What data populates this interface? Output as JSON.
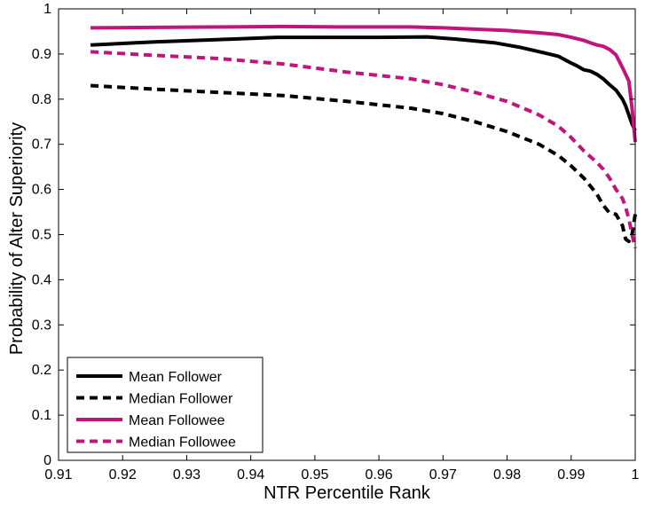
{
  "chart_data": {
    "type": "line",
    "xlabel": "NTR Percentile Rank",
    "ylabel": "Probability of Alter Superiority",
    "xlim": [
      0.91,
      1.0
    ],
    "ylim": [
      0,
      1.0
    ],
    "xticks": [
      0.91,
      0.92,
      0.93,
      0.94,
      0.95,
      0.96,
      0.97,
      0.98,
      0.99,
      1.0
    ],
    "xtick_labels": [
      "0.91",
      "0.92",
      "0.93",
      "0.94",
      "0.95",
      "0.96",
      "0.97",
      "0.98",
      "0.99",
      "1"
    ],
    "yticks": [
      0,
      0.1,
      0.2,
      0.3,
      0.4,
      0.5,
      0.6,
      0.7,
      0.8,
      0.9,
      1.0
    ],
    "ytick_labels": [
      "0",
      "0.1",
      "0.2",
      "0.3",
      "0.4",
      "0.5",
      "0.6",
      "0.7",
      "0.8",
      "0.9",
      "1"
    ],
    "grid": false,
    "legend_position": "bottom-left",
    "series": [
      {
        "name": "Mean Follower",
        "color": "#000000",
        "dash": "solid",
        "x": [
          0.915,
          0.925,
          0.935,
          0.944,
          0.95,
          0.96,
          0.9675,
          0.972,
          0.978,
          0.982,
          0.986,
          0.988,
          0.99,
          0.991,
          0.992,
          0.993,
          0.994,
          0.995,
          0.996,
          0.997,
          0.998,
          0.9985,
          0.999,
          0.9995,
          1.0
        ],
        "y": [
          0.92,
          0.927,
          0.932,
          0.937,
          0.937,
          0.937,
          0.938,
          0.933,
          0.925,
          0.915,
          0.902,
          0.895,
          0.88,
          0.873,
          0.865,
          0.862,
          0.855,
          0.845,
          0.832,
          0.82,
          0.8,
          0.785,
          0.765,
          0.745,
          0.73
        ]
      },
      {
        "name": "Median Follower",
        "color": "#000000",
        "dash": "dashed",
        "x": [
          0.915,
          0.925,
          0.935,
          0.945,
          0.955,
          0.965,
          0.97,
          0.975,
          0.98,
          0.985,
          0.988,
          0.99,
          0.992,
          0.994,
          0.995,
          0.996,
          0.997,
          0.998,
          0.9985,
          0.999,
          0.9995,
          1.0
        ],
        "y": [
          0.83,
          0.822,
          0.815,
          0.808,
          0.795,
          0.78,
          0.768,
          0.75,
          0.728,
          0.7,
          0.675,
          0.652,
          0.625,
          0.59,
          0.565,
          0.548,
          0.545,
          0.52,
          0.49,
          0.485,
          0.5,
          0.545
        ]
      },
      {
        "name": "Mean Followee",
        "color": "#c0157d",
        "dash": "solid",
        "x": [
          0.915,
          0.925,
          0.935,
          0.945,
          0.955,
          0.965,
          0.97,
          0.975,
          0.98,
          0.985,
          0.988,
          0.99,
          0.992,
          0.993,
          0.994,
          0.995,
          0.996,
          0.997,
          0.998,
          0.999,
          0.9995,
          1.0
        ],
        "y": [
          0.958,
          0.959,
          0.96,
          0.961,
          0.96,
          0.96,
          0.958,
          0.955,
          0.952,
          0.947,
          0.943,
          0.937,
          0.93,
          0.925,
          0.92,
          0.917,
          0.91,
          0.898,
          0.87,
          0.84,
          0.78,
          0.705
        ]
      },
      {
        "name": "Median Followee",
        "color": "#c0157d",
        "dash": "dashed",
        "x": [
          0.915,
          0.925,
          0.935,
          0.945,
          0.955,
          0.965,
          0.97,
          0.975,
          0.98,
          0.985,
          0.988,
          0.99,
          0.992,
          0.994,
          0.995,
          0.996,
          0.997,
          0.998,
          0.9985,
          0.999,
          0.9995,
          1.0
        ],
        "y": [
          0.905,
          0.897,
          0.89,
          0.878,
          0.86,
          0.845,
          0.832,
          0.815,
          0.795,
          0.765,
          0.74,
          0.715,
          0.685,
          0.66,
          0.645,
          0.625,
          0.6,
          0.58,
          0.56,
          0.535,
          0.5,
          0.47
        ]
      }
    ]
  }
}
